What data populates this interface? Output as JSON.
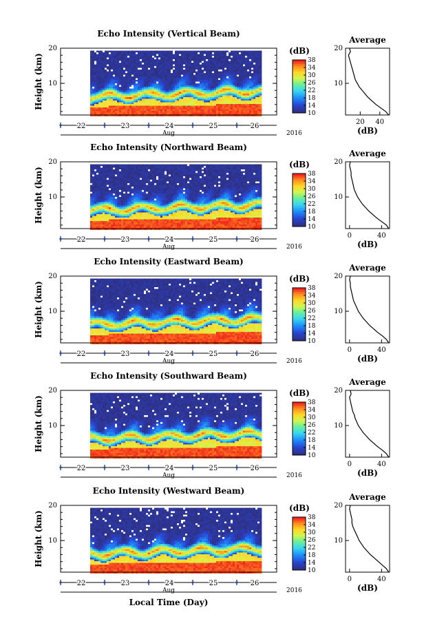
{
  "figure": {
    "xlabel": "Local Time (Day)",
    "month_label": "Aug",
    "year_label": "2016",
    "colorbar_unit": "(dB)"
  },
  "chart_data": [
    {
      "type": "heatmap",
      "title": "Echo Intensity (Vertical Beam)",
      "ylabel": "Height (km)",
      "xlabel": "",
      "x_ticks": [
        "22",
        "23",
        "24",
        "25",
        "26"
      ],
      "y_ticks": [
        10,
        20
      ],
      "ylim": [
        1,
        20
      ],
      "colorbar": {
        "label": "(dB)",
        "ticks": [
          10,
          14,
          18,
          22,
          26,
          30,
          34,
          38
        ],
        "range": [
          10,
          38
        ]
      },
      "average_profile": {
        "title": "Average",
        "xlabel": "(dB)",
        "x_ticks": [
          20,
          40
        ],
        "xlim": [
          5,
          50
        ],
        "height_km": [
          20,
          19,
          18,
          17,
          16,
          15,
          14,
          13,
          12,
          11,
          10,
          9,
          8,
          7,
          6,
          5,
          4,
          3,
          2,
          1
        ],
        "values": [
          9,
          10,
          8,
          9,
          10,
          11,
          12,
          13,
          14,
          15,
          17,
          19,
          22,
          25,
          28,
          32,
          36,
          41,
          46,
          49
        ]
      }
    },
    {
      "type": "heatmap",
      "title": "Echo Intensity (Northward Beam)",
      "ylabel": "Height (km)",
      "xlabel": "",
      "x_ticks": [
        "22",
        "23",
        "24",
        "25",
        "26"
      ],
      "y_ticks": [
        10,
        20
      ],
      "ylim": [
        1,
        20
      ],
      "colorbar": {
        "label": "(dB)",
        "ticks": [
          10,
          14,
          18,
          22,
          26,
          30,
          34,
          38
        ],
        "range": [
          10,
          38
        ]
      },
      "average_profile": {
        "title": "Average",
        "xlabel": "(dB)",
        "x_ticks": [
          0,
          40
        ],
        "xlim": [
          -5,
          50
        ],
        "height_km": [
          20,
          19,
          18,
          17,
          16,
          15,
          14,
          13,
          12,
          11,
          10,
          9,
          8,
          7,
          6,
          5,
          4,
          3,
          2,
          1
        ],
        "values": [
          1,
          0,
          1,
          2,
          2,
          3,
          4,
          5,
          6,
          8,
          10,
          13,
          16,
          20,
          24,
          29,
          34,
          40,
          46,
          49
        ]
      }
    },
    {
      "type": "heatmap",
      "title": "Echo Intensity (Eastward Beam)",
      "ylabel": "Height (km)",
      "xlabel": "",
      "x_ticks": [
        "22",
        "23",
        "24",
        "25",
        "26"
      ],
      "y_ticks": [
        10,
        20
      ],
      "ylim": [
        1,
        20
      ],
      "colorbar": {
        "label": "(dB)",
        "ticks": [
          10,
          14,
          18,
          22,
          26,
          30,
          34,
          38
        ],
        "range": [
          10,
          38
        ]
      },
      "average_profile": {
        "title": "Average",
        "xlabel": "(dB)",
        "x_ticks": [
          0,
          40
        ],
        "xlim": [
          -5,
          50
        ],
        "height_km": [
          20,
          19,
          18,
          17,
          16,
          15,
          14,
          13,
          12,
          11,
          10,
          9,
          8,
          7,
          6,
          5,
          4,
          3,
          2,
          1
        ],
        "values": [
          1,
          0,
          1,
          1,
          2,
          3,
          4,
          5,
          7,
          9,
          11,
          14,
          17,
          21,
          25,
          30,
          35,
          41,
          46,
          49
        ]
      }
    },
    {
      "type": "heatmap",
      "title": "Echo Intensity (Southward Beam)",
      "ylabel": "Height (km)",
      "xlabel": "",
      "x_ticks": [
        "22",
        "23",
        "24",
        "25",
        "26"
      ],
      "y_ticks": [
        10,
        20
      ],
      "ylim": [
        1,
        20
      ],
      "colorbar": {
        "label": "(dB)",
        "ticks": [
          10,
          14,
          18,
          22,
          26,
          30,
          34,
          38
        ],
        "range": [
          10,
          38
        ]
      },
      "average_profile": {
        "title": "Average",
        "xlabel": "(dB)",
        "x_ticks": [
          0,
          40
        ],
        "xlim": [
          -5,
          50
        ],
        "height_km": [
          20,
          19,
          18,
          17,
          16,
          15,
          14,
          13,
          12,
          11,
          10,
          9,
          8,
          7,
          6,
          5,
          4,
          3,
          2,
          1
        ],
        "values": [
          1,
          2,
          0,
          1,
          2,
          3,
          4,
          6,
          7,
          9,
          11,
          14,
          17,
          21,
          25,
          30,
          35,
          41,
          46,
          49
        ]
      }
    },
    {
      "type": "heatmap",
      "title": "Echo Intensity (Westward Beam)",
      "ylabel": "Height (km)",
      "xlabel": "",
      "x_ticks": [
        "22",
        "23",
        "24",
        "25",
        "26"
      ],
      "y_ticks": [
        10,
        20
      ],
      "ylim": [
        1,
        20
      ],
      "colorbar": {
        "label": "(dB)",
        "ticks": [
          10,
          14,
          18,
          22,
          26,
          30,
          34,
          38
        ],
        "range": [
          10,
          38
        ]
      },
      "average_profile": {
        "title": "Average",
        "xlabel": "(dB)",
        "x_ticks": [
          0,
          40
        ],
        "xlim": [
          -5,
          50
        ],
        "height_km": [
          20,
          19,
          18,
          17,
          16,
          15,
          14,
          13,
          12,
          11,
          10,
          9,
          8,
          7,
          6,
          5,
          4,
          3,
          2,
          1
        ],
        "values": [
          1,
          0,
          1,
          2,
          3,
          3,
          4,
          6,
          8,
          10,
          12,
          15,
          18,
          22,
          26,
          31,
          36,
          41,
          46,
          49
        ]
      }
    }
  ]
}
